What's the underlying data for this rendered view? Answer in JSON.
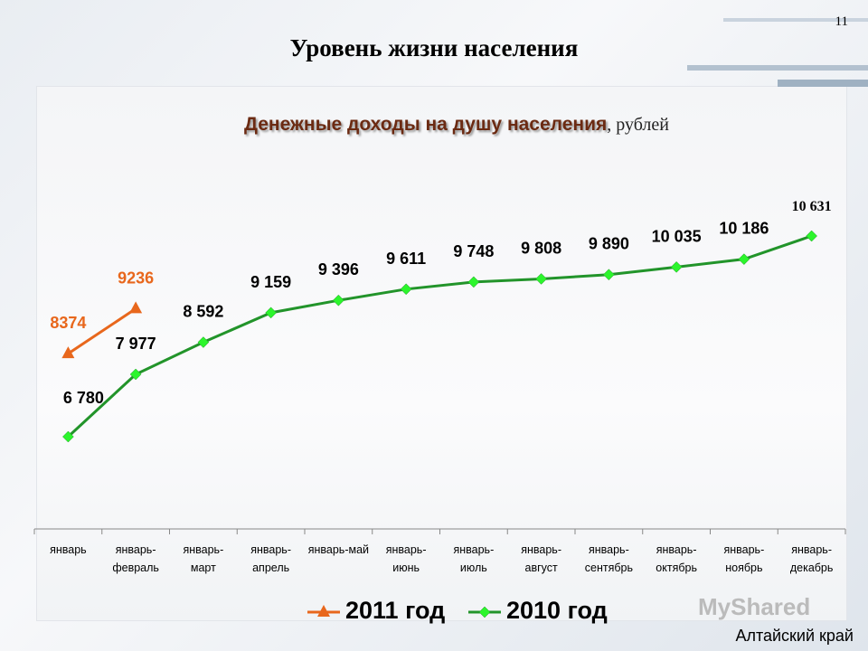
{
  "page_number": "11",
  "watermark": "MyShared",
  "footer": "Алтайский край",
  "chart_data": {
    "type": "line",
    "title": "Уровень жизни населения",
    "subtitle": "Денежные доходы на душу населения",
    "unit": ", рублей",
    "categories": [
      "январь",
      "январь-февраль",
      "январь-март",
      "январь-апрель",
      "январь-май",
      "январь-июнь",
      "январь-июль",
      "январь-август",
      "январь-сентябрь",
      "январь-октябрь",
      "январь-ноябрь",
      "январь-декабрь"
    ],
    "series": [
      {
        "name": "2011 год",
        "color": "#e8671c",
        "marker": "triangle",
        "values": [
          8374,
          9236,
          null,
          null,
          null,
          null,
          null,
          null,
          null,
          null,
          null,
          null
        ]
      },
      {
        "name": "2010 год",
        "color": "#22942a",
        "marker": "diamond",
        "marker_color": "#2cf52c",
        "values": [
          6780,
          7977,
          8592,
          9159,
          9396,
          9611,
          9748,
          9808,
          9890,
          10035,
          10186,
          10631
        ],
        "value_labels": [
          "6 780",
          "7 977",
          "8 592",
          "9 159",
          "9 396",
          "9 611",
          "9 748",
          "9 808",
          "9 890",
          "10 035",
          "10 186",
          "10 631"
        ]
      }
    ],
    "legend": "bottom"
  }
}
